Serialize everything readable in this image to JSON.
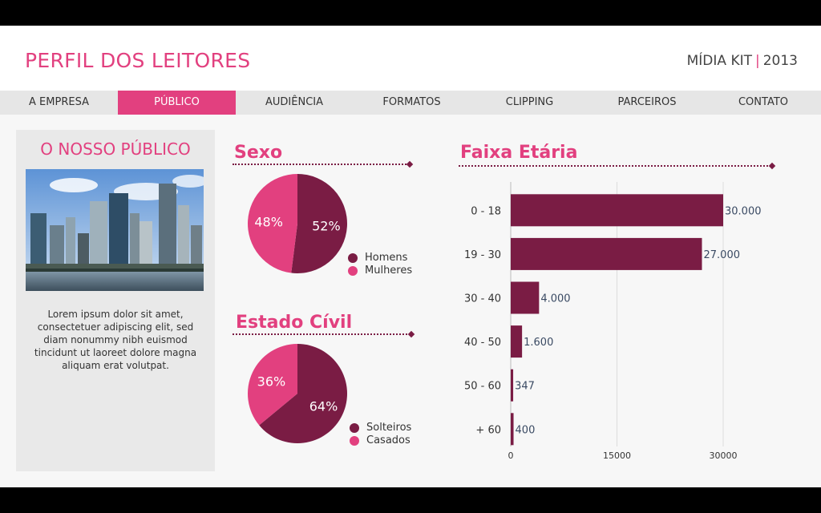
{
  "header": {
    "title": "PERFIL DOS LEITORES",
    "kit_label": "MÍDIA KIT",
    "kit_separator": "|",
    "kit_year": "2013"
  },
  "nav": {
    "items": [
      {
        "label": "A EMPRESA",
        "active": false
      },
      {
        "label": "PÚBLICO",
        "active": true
      },
      {
        "label": "AUDIÊNCIA",
        "active": false
      },
      {
        "label": "FORMATOS",
        "active": false
      },
      {
        "label": "CLIPPING",
        "active": false
      },
      {
        "label": "PARCEIROS",
        "active": false
      },
      {
        "label": "CONTATO",
        "active": false
      }
    ]
  },
  "panel": {
    "title": "O NOSSO PÚBLICO",
    "text": "Lorem ipsum dolor sit amet, consectetuer adipiscing elit, sed diam nonummy nibh euismod tincidunt ut laoreet dolore magna aliquam erat volutpat."
  },
  "colors": {
    "accent": "#e2407f",
    "dark": "#7a1c44",
    "text_value": "#3a4a63"
  },
  "chart_data": [
    {
      "type": "pie",
      "title": "Sexo",
      "slices": [
        {
          "name": "Homens",
          "value": 52,
          "label": "52%",
          "color": "#7a1c44"
        },
        {
          "name": "Mulheres",
          "value": 48,
          "label": "48%",
          "color": "#e2407f"
        }
      ],
      "legend": "bottom-right"
    },
    {
      "type": "pie",
      "title": "Estado Cívil",
      "slices": [
        {
          "name": "Solteiros",
          "value": 64,
          "label": "64%",
          "color": "#7a1c44"
        },
        {
          "name": "Casados",
          "value": 36,
          "label": "36%",
          "color": "#e2407f"
        }
      ],
      "legend": "bottom-right"
    },
    {
      "type": "bar",
      "orientation": "horizontal",
      "title": "Faixa Etária",
      "categories": [
        "0 - 18",
        "19 - 30",
        "30 - 40",
        "40 - 50",
        "50 - 60",
        "+ 60"
      ],
      "values": [
        30000,
        27000,
        4000,
        1600,
        347,
        400
      ],
      "value_labels": [
        "30.000",
        "27.000",
        "4.000",
        "1.600",
        "347",
        "400"
      ],
      "xlim": [
        0,
        30000
      ],
      "xticks": [
        0,
        15000,
        30000
      ],
      "xtick_labels": [
        "0",
        "15000",
        "30000"
      ],
      "grid": true,
      "color": "#7a1c44"
    }
  ]
}
